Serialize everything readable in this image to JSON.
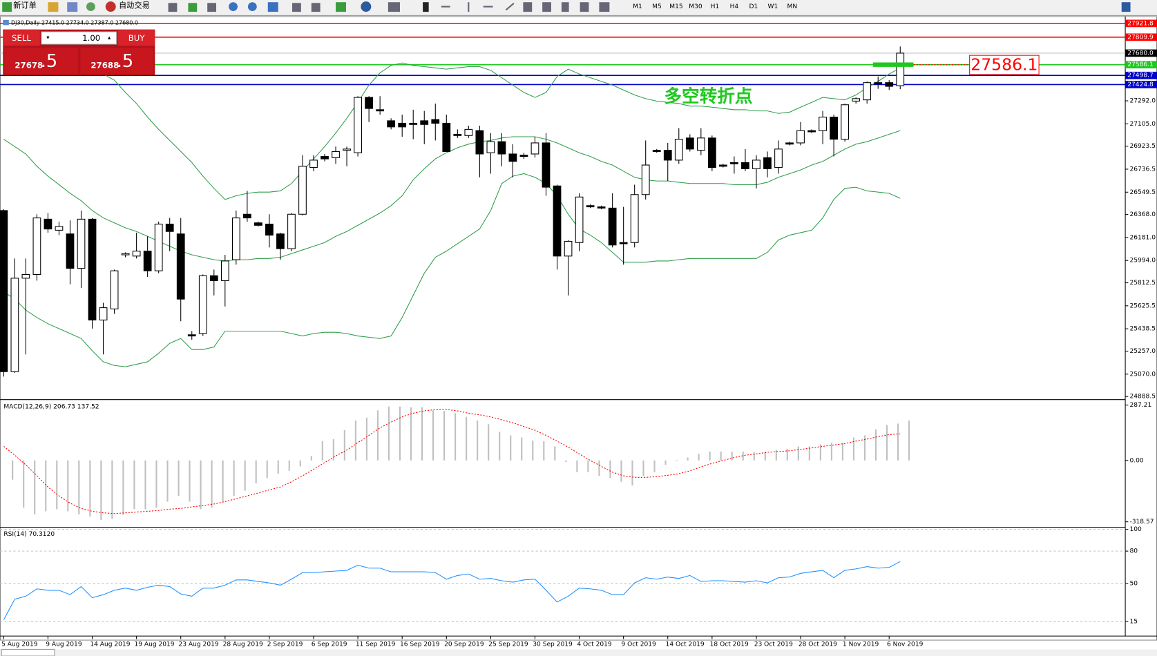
{
  "toolbar": {
    "new_order": "新订单",
    "auto_trading": "自动交易",
    "timeframes": [
      "M1",
      "M5",
      "M15",
      "M30",
      "H1",
      "H4",
      "D1",
      "W1",
      "MN"
    ]
  },
  "trade_panel": {
    "sell": "SELL",
    "lots": "1.00",
    "buy": "BUY",
    "bid_main": "27678",
    "bid_pips": ".5",
    "ask_main": "27688",
    "ask_pips": ".5"
  },
  "chart": {
    "header": "DJ30,Daily  27415.0 27734.0 27387.0 27680.0",
    "ylim": [
      24872,
      27938
    ],
    "yticks": [
      {
        "value": 27292,
        "label": "27292.0"
      },
      {
        "value": 27105,
        "label": "27105.0"
      },
      26923.5,
      26736.5,
      26549.5,
      {
        "value": 26368,
        "label": "26368.0"
      },
      {
        "value": 26181,
        "label": "26181.0"
      },
      {
        "value": 25994,
        "label": "25994.0"
      },
      25812.5,
      25625.5,
      25438.5,
      {
        "value": 25257,
        "label": "25257.0"
      },
      {
        "value": 25070,
        "label": "25070.0"
      },
      24888.5
    ],
    "levels": [
      {
        "value": 27921.8,
        "color": "#ff0000"
      },
      {
        "value": 27809.9,
        "color": "#ff0000"
      },
      {
        "value": 27586.1,
        "color": "#1ec81e"
      },
      {
        "value": 27498.7,
        "color": "#0000cc"
      },
      {
        "value": 27424.8,
        "color": "#0000cc"
      }
    ],
    "current_price": {
      "value": 27680,
      "label": "27680.0"
    },
    "annotation_price": 27586.1,
    "annotation_text": "多空转折点",
    "band_color": "#2e9e4a",
    "open": [
      26400,
      25090,
      25850,
      25880,
      26330,
      26240,
      26210,
      25930,
      26330,
      25510,
      25600,
      26040,
      26030,
      26070,
      25910,
      26290,
      26210,
      25390,
      25400,
      25870,
      25830,
      26000,
      26370,
      26300,
      26290,
      26210,
      26090,
      26370,
      26750,
      26840,
      26830,
      26890,
      26870,
      27320,
      27220,
      27130,
      27110,
      27110,
      27130,
      27140,
      27110,
      27020,
      27010,
      27050,
      26870,
      26960,
      26860,
      26850,
      26860,
      26950,
      26600,
      26030,
      26140,
      26440,
      26430,
      26420,
      26140,
      26140,
      26530,
      26890,
      26890,
      26810,
      26990,
      26890,
      26990,
      26770,
      26790,
      26790,
      26740,
      26830,
      26750,
      26950,
      26950,
      27050,
      27050,
      27160,
      26980,
      27290,
      27300,
      27440,
      27440,
      27415
    ],
    "high": [
      26410,
      26010,
      26010,
      26370,
      26380,
      26310,
      26320,
      26400,
      26340,
      25650,
      25920,
      26060,
      26220,
      26190,
      26310,
      26340,
      26340,
      25420,
      25880,
      25920,
      26040,
      26400,
      26560,
      26310,
      26370,
      26220,
      26380,
      26850,
      26850,
      26860,
      26920,
      26920,
      27330,
      27330,
      27330,
      27150,
      27180,
      27220,
      27210,
      27270,
      27180,
      27060,
      27090,
      27090,
      27030,
      27030,
      26940,
      26870,
      27000,
      27030,
      26610,
      26160,
      26540,
      26450,
      26440,
      26540,
      26430,
      26610,
      26970,
      26900,
      26950,
      27070,
      27020,
      27070,
      27010,
      26780,
      26840,
      26900,
      26850,
      26880,
      26970,
      26960,
      27120,
      27060,
      27210,
      27180,
      27270,
      27320,
      27450,
      27490,
      27460,
      27734
    ],
    "low": [
      25050,
      25080,
      25230,
      25830,
      26220,
      26200,
      25800,
      25770,
      25440,
      25230,
      25560,
      26020,
      26010,
      25860,
      25890,
      26070,
      25500,
      25350,
      25380,
      25710,
      25620,
      25960,
      26310,
      26270,
      26100,
      26000,
      26070,
      26360,
      26720,
      26800,
      26780,
      26760,
      26840,
      27120,
      27180,
      27060,
      27000,
      26980,
      26940,
      26970,
      26880,
      26990,
      26990,
      26670,
      26700,
      26760,
      26670,
      26820,
      26830,
      26520,
      25920,
      25710,
      26070,
      26420,
      26410,
      26100,
      25960,
      26100,
      26490,
      26870,
      26640,
      26780,
      26880,
      26850,
      26720,
      26750,
      26700,
      26720,
      26580,
      26670,
      26700,
      26930,
      26930,
      27030,
      26940,
      26840,
      26960,
      27270,
      27270,
      27390,
      27380,
      27387
    ],
    "close": [
      25090,
      25850,
      25880,
      26340,
      26250,
      26270,
      25930,
      26330,
      25510,
      25610,
      25910,
      26050,
      26070,
      25910,
      26290,
      26230,
      25680,
      25380,
      25870,
      25830,
      25990,
      26340,
      26340,
      26280,
      26200,
      26090,
      26370,
      26760,
      26810,
      26820,
      26880,
      26900,
      27320,
      27230,
      27210,
      27080,
      27080,
      27100,
      27100,
      27110,
      26880,
      27010,
      27060,
      26860,
      26960,
      26860,
      26800,
      26840,
      26950,
      26590,
      26030,
      26150,
      26510,
      26430,
      26420,
      26120,
      26130,
      26530,
      26770,
      26880,
      26810,
      26980,
      26900,
      26990,
      26750,
      26760,
      26780,
      26740,
      26810,
      26740,
      26900,
      26940,
      27050,
      27040,
      27160,
      26980,
      27260,
      27310,
      27440,
      27430,
      27410,
      27680
    ],
    "upper_band": [
      27870,
      27820,
      27780,
      27740,
      27700,
      27670,
      27630,
      27600,
      27560,
      27510,
      27460,
      27360,
      27270,
      27160,
      27060,
      26970,
      26880,
      26790,
      26680,
      26580,
      26490,
      26520,
      26540,
      26550,
      26550,
      26560,
      26620,
      26720,
      26820,
      26920,
      27030,
      27150,
      27280,
      27420,
      27520,
      27580,
      27600,
      27580,
      27570,
      27560,
      27550,
      27560,
      27570,
      27570,
      27540,
      27480,
      27420,
      27360,
      27320,
      27360,
      27490,
      27550,
      27510,
      27480,
      27450,
      27420,
      27380,
      27340,
      27310,
      27290,
      27280,
      27270,
      27250,
      27250,
      27240,
      27230,
      27220,
      27220,
      27210,
      27210,
      27190,
      27200,
      27240,
      27280,
      27320,
      27310,
      27300,
      27340,
      27400,
      27450,
      27510,
      27560
    ],
    "middle_band": [
      26980,
      26920,
      26860,
      26760,
      26680,
      26610,
      26540,
      26480,
      26400,
      26340,
      26300,
      26260,
      26230,
      26190,
      26150,
      26110,
      26070,
      26040,
      26020,
      26000,
      25990,
      26000,
      26000,
      26010,
      26010,
      26020,
      26050,
      26080,
      26110,
      26140,
      26190,
      26230,
      26280,
      26330,
      26380,
      26440,
      26520,
      26650,
      26740,
      26820,
      26870,
      26910,
      26940,
      26960,
      26970,
      26990,
      27000,
      27000,
      27000,
      26980,
      26950,
      26910,
      26870,
      26840,
      26800,
      26770,
      26720,
      26670,
      26650,
      26640,
      26640,
      26630,
      26620,
      26620,
      26620,
      26620,
      26610,
      26610,
      26610,
      26630,
      26670,
      26700,
      26730,
      26770,
      26800,
      26850,
      26900,
      26940,
      26960,
      26990,
      27020,
      27050
    ],
    "lower_band": [
      25740,
      25680,
      25590,
      25530,
      25480,
      25440,
      25400,
      25360,
      25260,
      25170,
      25140,
      25130,
      25150,
      25170,
      25240,
      25320,
      25360,
      25270,
      25270,
      25290,
      25420,
      25420,
      25420,
      25420,
      25420,
      25420,
      25400,
      25380,
      25400,
      25410,
      25410,
      25400,
      25380,
      25370,
      25360,
      25380,
      25530,
      25710,
      25890,
      26020,
      26070,
      26130,
      26190,
      26250,
      26400,
      26620,
      26680,
      26700,
      26670,
      26620,
      26520,
      26370,
      26250,
      26200,
      26140,
      26060,
      25980,
      25980,
      25980,
      25990,
      25990,
      26000,
      26010,
      26010,
      26010,
      26010,
      26010,
      26010,
      26010,
      26060,
      26160,
      26200,
      26220,
      26240,
      26340,
      26490,
      26580,
      26590,
      26560,
      26550,
      26540,
      26500
    ]
  },
  "macd": {
    "title": "MACD(12,26,9) 206.73 137.52",
    "ylim": [
      -341,
      310
    ],
    "yticks": [
      287.21,
      {
        "value": 0,
        "label": "0.00"
      },
      -318.57
    ],
    "histogram_color": "#c0c0c0",
    "signal_color": "#ff0000",
    "histogram": [
      -100,
      -245,
      -280,
      -264,
      -253,
      -264,
      -280,
      -291,
      -310,
      -303,
      -283,
      -253,
      -253,
      -245,
      -214,
      -184,
      -214,
      -253,
      -245,
      -214,
      -184,
      -157,
      -119,
      -92,
      -69,
      -54,
      -31,
      23,
      100,
      111,
      157,
      207,
      222,
      260,
      280,
      280,
      276,
      276,
      260,
      257,
      245,
      226,
      207,
      188,
      149,
      130,
      119,
      103,
      100,
      73,
      -8,
      -61,
      -61,
      -80,
      -92,
      -111,
      -130,
      -80,
      -61,
      -23,
      -4,
      15,
      34,
      46,
      46,
      46,
      46,
      42,
      46,
      54,
      61,
      73,
      73,
      84,
      92,
      92,
      119,
      130,
      161,
      184,
      191,
      206.73
    ],
    "signal": [
      73,
      27,
      -23,
      -80,
      -138,
      -184,
      -222,
      -249,
      -264,
      -272,
      -276,
      -272,
      -268,
      -264,
      -260,
      -253,
      -249,
      -241,
      -234,
      -226,
      -214,
      -199,
      -184,
      -169,
      -153,
      -138,
      -111,
      -80,
      -46,
      -11,
      23,
      54,
      92,
      130,
      169,
      199,
      226,
      245,
      257,
      264,
      264,
      257,
      245,
      237,
      226,
      211,
      195,
      176,
      157,
      130,
      100,
      69,
      34,
      0,
      -31,
      -61,
      -80,
      -88,
      -88,
      -84,
      -77,
      -69,
      -54,
      -34,
      -15,
      0,
      15,
      27,
      34,
      42,
      46,
      50,
      57,
      65,
      73,
      80,
      88,
      100,
      111,
      123,
      134,
      137.52
    ]
  },
  "rsi": {
    "title": "RSI(14) 70.3120",
    "ylim": [
      3,
      101
    ],
    "yticks": [
      100,
      80,
      50,
      15
    ],
    "grid": true,
    "color": "#1e90ff",
    "values": [
      16.6,
      35.7,
      38.4,
      45.2,
      43.9,
      43.9,
      39.8,
      47.3,
      37.0,
      39.8,
      43.9,
      45.9,
      43.9,
      46.6,
      48.6,
      47.3,
      40.5,
      38.4,
      45.9,
      45.9,
      48.6,
      53.4,
      53.4,
      52.0,
      50.7,
      48.6,
      54.1,
      60.2,
      60.2,
      60.9,
      61.6,
      62.3,
      67.0,
      64.3,
      64.3,
      60.9,
      60.9,
      60.9,
      60.9,
      60.2,
      54.1,
      57.5,
      58.9,
      54.1,
      54.8,
      52.7,
      51.4,
      53.4,
      54.1,
      43.9,
      33.0,
      38.4,
      45.9,
      45.2,
      43.9,
      39.8,
      39.8,
      50.7,
      55.5,
      54.1,
      56.1,
      54.8,
      57.5,
      52.0,
      52.7,
      52.7,
      52.0,
      51.4,
      52.7,
      50.7,
      55.5,
      56.1,
      59.5,
      60.9,
      62.3,
      55.5,
      62.3,
      63.6,
      65.7,
      64.3,
      65.0,
      70.312
    ]
  },
  "date_labels": [
    "5 Aug 2019",
    "9 Aug 2019",
    "14 Aug 2019",
    "19 Aug 2019",
    "23 Aug 2019",
    "28 Aug 2019",
    "2 Sep 2019",
    "6 Sep 2019",
    "11 Sep 2019",
    "16 Sep 2019",
    "20 Sep 2019",
    "25 Sep 2019",
    "30 Sep 2019",
    "4 Oct 2019",
    "9 Oct 2019",
    "14 Oct 2019",
    "18 Oct 2019",
    "23 Oct 2019",
    "28 Oct 2019",
    "1 Nov 2019",
    "6 Nov 2019"
  ]
}
